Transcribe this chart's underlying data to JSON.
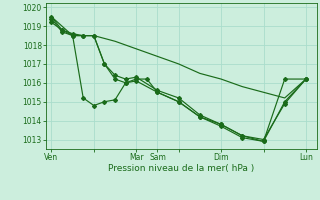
{
  "xlabel": "Pression niveau de la mer( hPa )",
  "bg_color": "#cceedd",
  "grid_color": "#aaddcc",
  "line_color": "#1a6b1a",
  "ylim": [
    1012.5,
    1020.2
  ],
  "yticks": [
    1013,
    1014,
    1015,
    1016,
    1017,
    1018,
    1019,
    1020
  ],
  "xtick_labels": [
    "Ven",
    "",
    "Mar",
    "Sam",
    "",
    "Dim",
    "",
    "Lun"
  ],
  "xtick_positions": [
    0,
    24,
    48,
    60,
    72,
    96,
    120,
    144
  ],
  "xlim": [
    -3,
    150
  ],
  "series1": {
    "x": [
      0,
      6,
      12,
      18,
      24,
      30,
      36,
      42,
      48,
      60,
      72,
      84,
      96,
      108,
      120,
      132,
      144
    ],
    "y": [
      1019.4,
      1018.7,
      1018.5,
      1018.5,
      1018.5,
      1017.0,
      1016.2,
      1016.0,
      1016.1,
      1015.5,
      1015.0,
      1014.2,
      1013.7,
      1013.1,
      1012.9,
      1016.2,
      1016.2
    ]
  },
  "series2": {
    "x": [
      0,
      6,
      12,
      18,
      24,
      30,
      36,
      42,
      48,
      60,
      72,
      84,
      96,
      108,
      120,
      132,
      144
    ],
    "y": [
      1019.2,
      1018.8,
      1018.6,
      1018.5,
      1018.5,
      1017.0,
      1016.4,
      1016.2,
      1016.3,
      1015.6,
      1015.2,
      1014.3,
      1013.8,
      1013.2,
      1012.9,
      1015.0,
      1016.2
    ]
  },
  "series3": {
    "x": [
      0,
      12,
      24,
      36,
      48,
      60,
      72,
      84,
      96,
      108,
      120,
      132,
      144
    ],
    "y": [
      1019.5,
      1018.5,
      1018.5,
      1018.2,
      1017.8,
      1017.4,
      1017.0,
      1016.5,
      1016.2,
      1015.8,
      1015.5,
      1015.2,
      1016.2
    ]
  },
  "series4": {
    "x": [
      0,
      6,
      12,
      18,
      24,
      30,
      36,
      42,
      48,
      54,
      60,
      72,
      84,
      96,
      108,
      120,
      132,
      144
    ],
    "y": [
      1019.5,
      1018.8,
      1018.5,
      1015.2,
      1014.8,
      1015.0,
      1015.1,
      1016.0,
      1016.2,
      1016.2,
      1015.5,
      1015.0,
      1014.2,
      1013.8,
      1013.2,
      1013.0,
      1014.9,
      1016.2
    ]
  }
}
